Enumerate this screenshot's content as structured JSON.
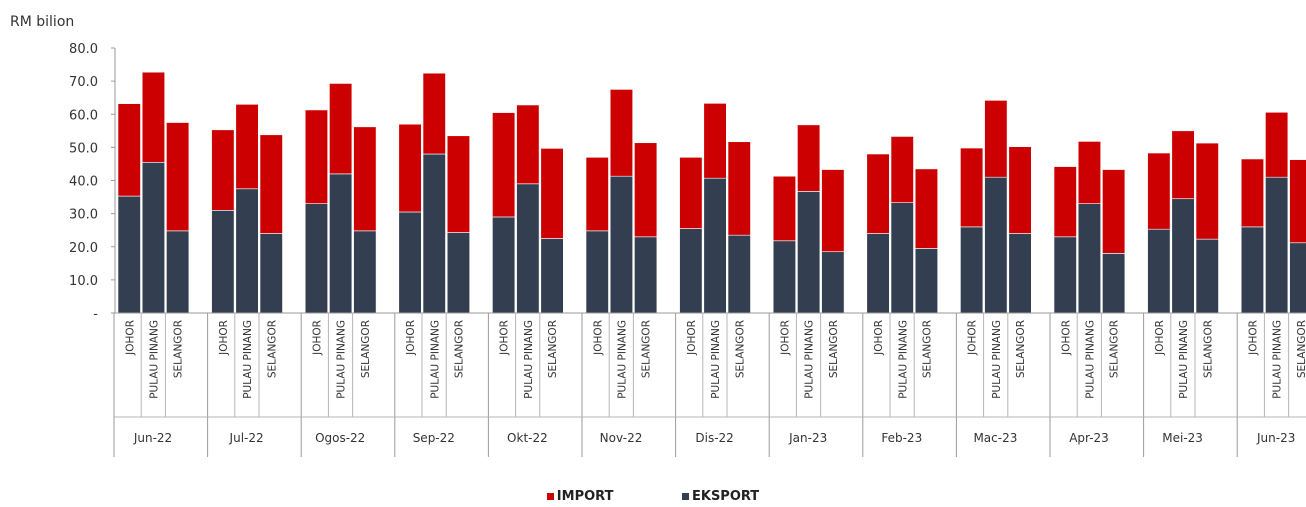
{
  "chart_data": {
    "type": "bar",
    "stacked": true,
    "ylabel": "RM bilion",
    "ylim": [
      0,
      80
    ],
    "y_ticks": [
      "-",
      "10.0",
      "20.0",
      "30.0",
      "40.0",
      "50.0",
      "60.0",
      "70.0",
      "80.0"
    ],
    "grid": false,
    "legend_position": "bottom",
    "months": [
      "Jun-22",
      "Jul-22",
      "Ogos-22",
      "Sep-22",
      "Okt-22",
      "Nov-22",
      "Dis-22",
      "Jan-23",
      "Feb-23",
      "Mac-23",
      "Apr-23",
      "Mei-23",
      "Jun-23"
    ],
    "states": [
      "JOHOR",
      "PULAU PINANG",
      "SELANGOR"
    ],
    "series": [
      {
        "name": "EKSPORT",
        "color": "#333f50",
        "values": [
          [
            35.3,
            45.5,
            24.8
          ],
          [
            31.0,
            37.5,
            24.0
          ],
          [
            33.0,
            42.0,
            24.8
          ],
          [
            30.5,
            48.0,
            24.3
          ],
          [
            29.0,
            39.0,
            22.5
          ],
          [
            24.8,
            41.3,
            23.0
          ],
          [
            25.5,
            40.7,
            23.5
          ],
          [
            21.8,
            36.7,
            18.5
          ],
          [
            24.0,
            33.3,
            19.5
          ],
          [
            26.0,
            41.0,
            24.0
          ],
          [
            23.0,
            33.0,
            18.0
          ],
          [
            25.3,
            34.5,
            22.3
          ],
          [
            26.0,
            41.0,
            21.2
          ]
        ]
      },
      {
        "name": "IMPORT",
        "color": "#cc0000",
        "values": [
          [
            27.9,
            27.2,
            32.7
          ],
          [
            24.3,
            25.5,
            29.8
          ],
          [
            28.3,
            27.3,
            31.4
          ],
          [
            26.5,
            24.4,
            29.2
          ],
          [
            31.5,
            23.8,
            27.2
          ],
          [
            22.2,
            26.2,
            28.4
          ],
          [
            21.5,
            22.6,
            28.2
          ],
          [
            19.5,
            20.1,
            24.8
          ],
          [
            24.0,
            20.0,
            24.0
          ],
          [
            23.8,
            23.2,
            26.2
          ],
          [
            21.2,
            18.8,
            25.3
          ],
          [
            23.0,
            20.5,
            29.0
          ],
          [
            20.5,
            19.6,
            25.1
          ]
        ]
      }
    ]
  }
}
